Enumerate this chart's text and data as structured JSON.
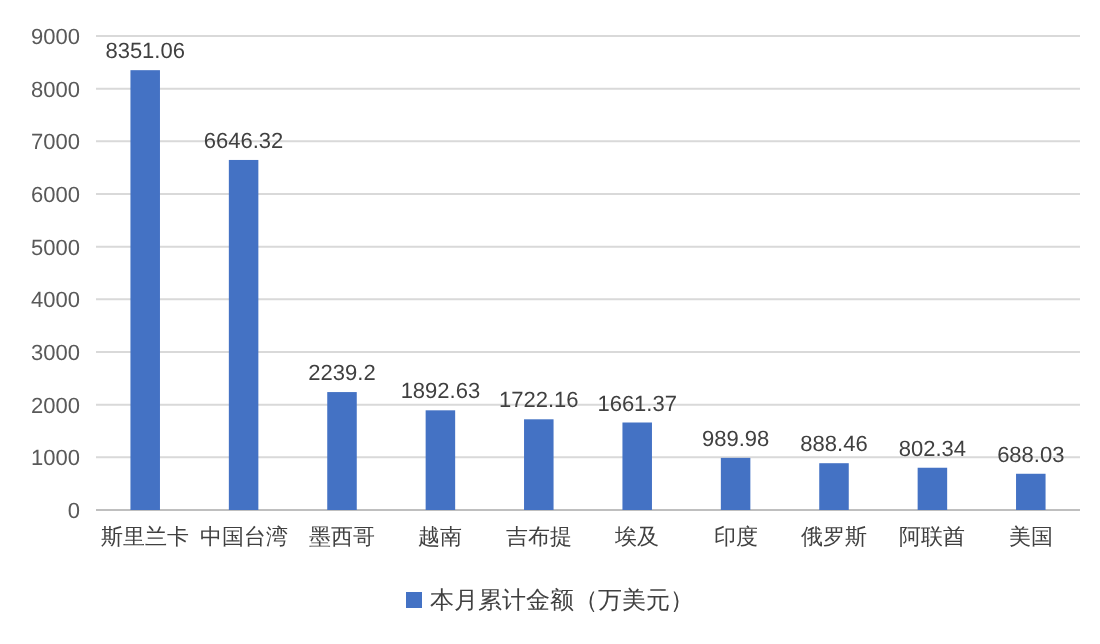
{
  "chart_data": {
    "type": "bar",
    "categories": [
      "斯里兰卡",
      "中国台湾",
      "墨西哥",
      "越南",
      "吉布提",
      "埃及",
      "印度",
      "俄罗斯",
      "阿联酋",
      "美国"
    ],
    "series": [
      {
        "name": "本月累计金额（万美元）",
        "color": "#4472c4",
        "values": [
          8351.06,
          6646.32,
          2239.2,
          1892.63,
          1722.16,
          1661.37,
          989.98,
          888.46,
          802.34,
          688.03
        ]
      }
    ],
    "ylim": [
      0,
      9000
    ],
    "yticks": [
      0,
      1000,
      2000,
      3000,
      4000,
      5000,
      6000,
      7000,
      8000,
      9000
    ],
    "grid": "y",
    "legend": "bottom",
    "data_labels": true
  }
}
